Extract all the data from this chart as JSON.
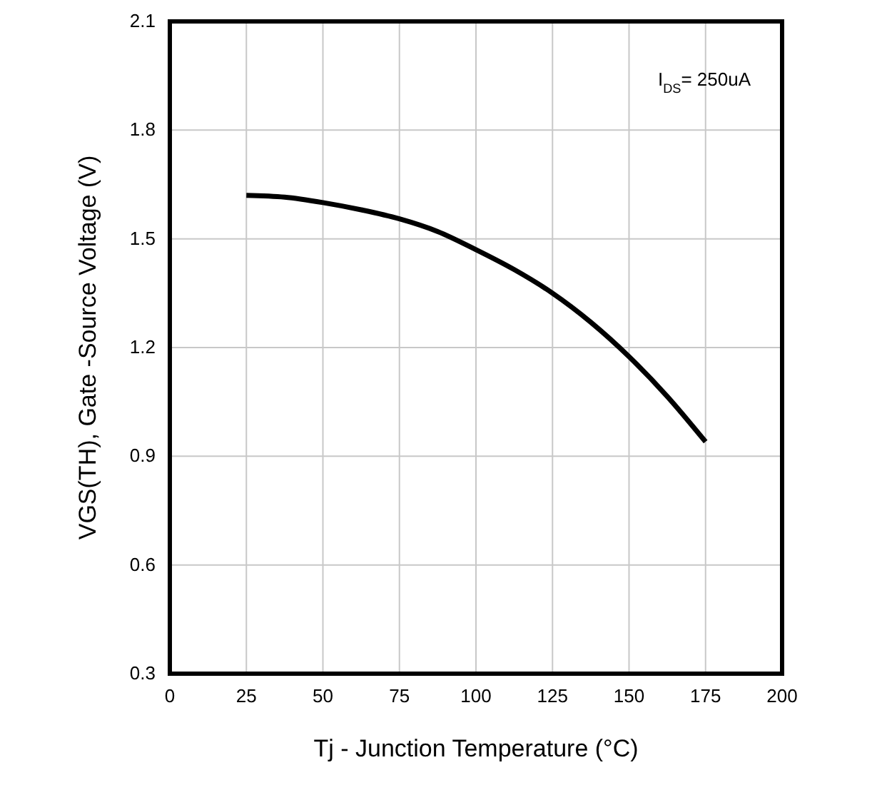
{
  "chart_data": {
    "type": "line",
    "xlabel": "Tj - Junction Temperature (°C)",
    "ylabel": "VGS(TH), Gate -Source Voltage (V)",
    "annotations": [
      "I$_{DS}$= 250uA"
    ],
    "x": [
      25,
      37.5,
      50,
      62.5,
      75,
      87.5,
      100,
      112.5,
      125,
      137.5,
      150,
      162.5,
      175
    ],
    "series": [
      {
        "color": "#000000",
        "values": [
          1.62,
          1.615,
          1.6,
          1.58,
          1.555,
          1.52,
          1.47,
          1.415,
          1.35,
          1.27,
          1.175,
          1.065,
          0.94
        ]
      }
    ],
    "xlim": [
      0,
      200
    ],
    "xticks": [
      0,
      25,
      50,
      75,
      100,
      125,
      150,
      175,
      200
    ],
    "ylim": [
      0.3,
      2.1
    ],
    "yticks": [
      {
        "value": 0.3,
        "label": "0.3"
      },
      {
        "value": 0.6,
        "label": "0.6"
      },
      {
        "value": 0.9,
        "label": "0.9"
      },
      {
        "value": 1.2,
        "label": "1.2"
      },
      {
        "value": 1.5,
        "label": "1.5"
      },
      {
        "value": 1.8,
        "label": "1.8"
      },
      {
        "value": 2.1,
        "label": "2.1"
      }
    ],
    "grid": true,
    "marker": "none",
    "line_style": "solid"
  }
}
